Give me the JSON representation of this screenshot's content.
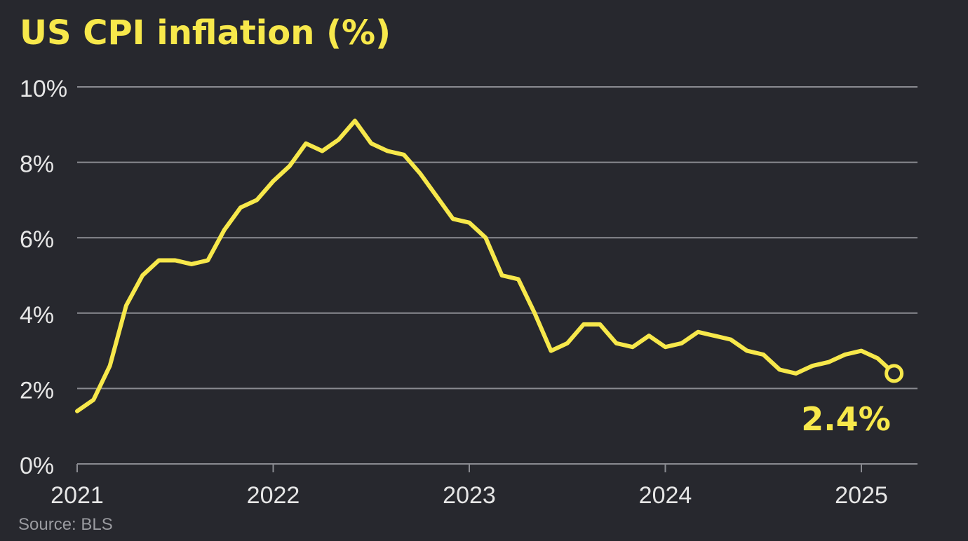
{
  "colors": {
    "background": "#27282e",
    "line": "#f7e84b",
    "title": "#f7e84b",
    "grid": "#8a8b91",
    "tick_text": "#e6e6e6",
    "source_text": "#9a9ba0"
  },
  "source": "Source: BLS",
  "chart_data": {
    "type": "line",
    "title": "US CPI inflation (%)",
    "xlabel": "",
    "ylabel": "",
    "grid": true,
    "ylim": [
      0,
      10
    ],
    "xlim": [
      "2021-01",
      "2025-04"
    ],
    "y_ticks": [
      0,
      2,
      4,
      6,
      8,
      10
    ],
    "y_tick_labels": [
      "0%",
      "2%",
      "4%",
      "6%",
      "8%",
      "10%"
    ],
    "x_ticks": [
      "2021-01",
      "2022-01",
      "2023-01",
      "2024-01",
      "2025-01"
    ],
    "x_tick_labels": [
      "2021",
      "2022",
      "2023",
      "2024",
      "2025"
    ],
    "end_label": "2.4%",
    "series": [
      {
        "x": [
          "2021-01",
          "2021-02",
          "2021-03",
          "2021-04",
          "2021-05",
          "2021-06",
          "2021-07",
          "2021-08",
          "2021-09",
          "2021-10",
          "2021-11",
          "2021-12",
          "2022-01",
          "2022-02",
          "2022-03",
          "2022-04",
          "2022-05",
          "2022-06",
          "2022-07",
          "2022-08",
          "2022-09",
          "2022-10",
          "2022-11",
          "2022-12",
          "2023-01",
          "2023-02",
          "2023-03",
          "2023-04",
          "2023-05",
          "2023-06",
          "2023-07",
          "2023-08",
          "2023-09",
          "2023-10",
          "2023-11",
          "2023-12",
          "2024-01",
          "2024-02",
          "2024-03",
          "2024-04",
          "2024-05",
          "2024-06",
          "2024-07",
          "2024-08",
          "2024-09",
          "2024-10",
          "2024-11",
          "2024-12",
          "2025-01",
          "2025-02",
          "2025-03"
        ],
        "values": [
          1.4,
          1.7,
          2.6,
          4.2,
          5.0,
          5.4,
          5.4,
          5.3,
          5.4,
          6.2,
          6.8,
          7.0,
          7.5,
          7.9,
          8.5,
          8.3,
          8.6,
          9.1,
          8.5,
          8.3,
          8.2,
          7.7,
          7.1,
          6.5,
          6.4,
          6.0,
          5.0,
          4.9,
          4.0,
          3.0,
          3.2,
          3.7,
          3.7,
          3.2,
          3.1,
          3.4,
          3.1,
          3.2,
          3.5,
          3.4,
          3.3,
          3.0,
          2.9,
          2.5,
          2.4,
          2.6,
          2.7,
          2.9,
          3.0,
          2.8,
          2.4
        ]
      }
    ]
  }
}
